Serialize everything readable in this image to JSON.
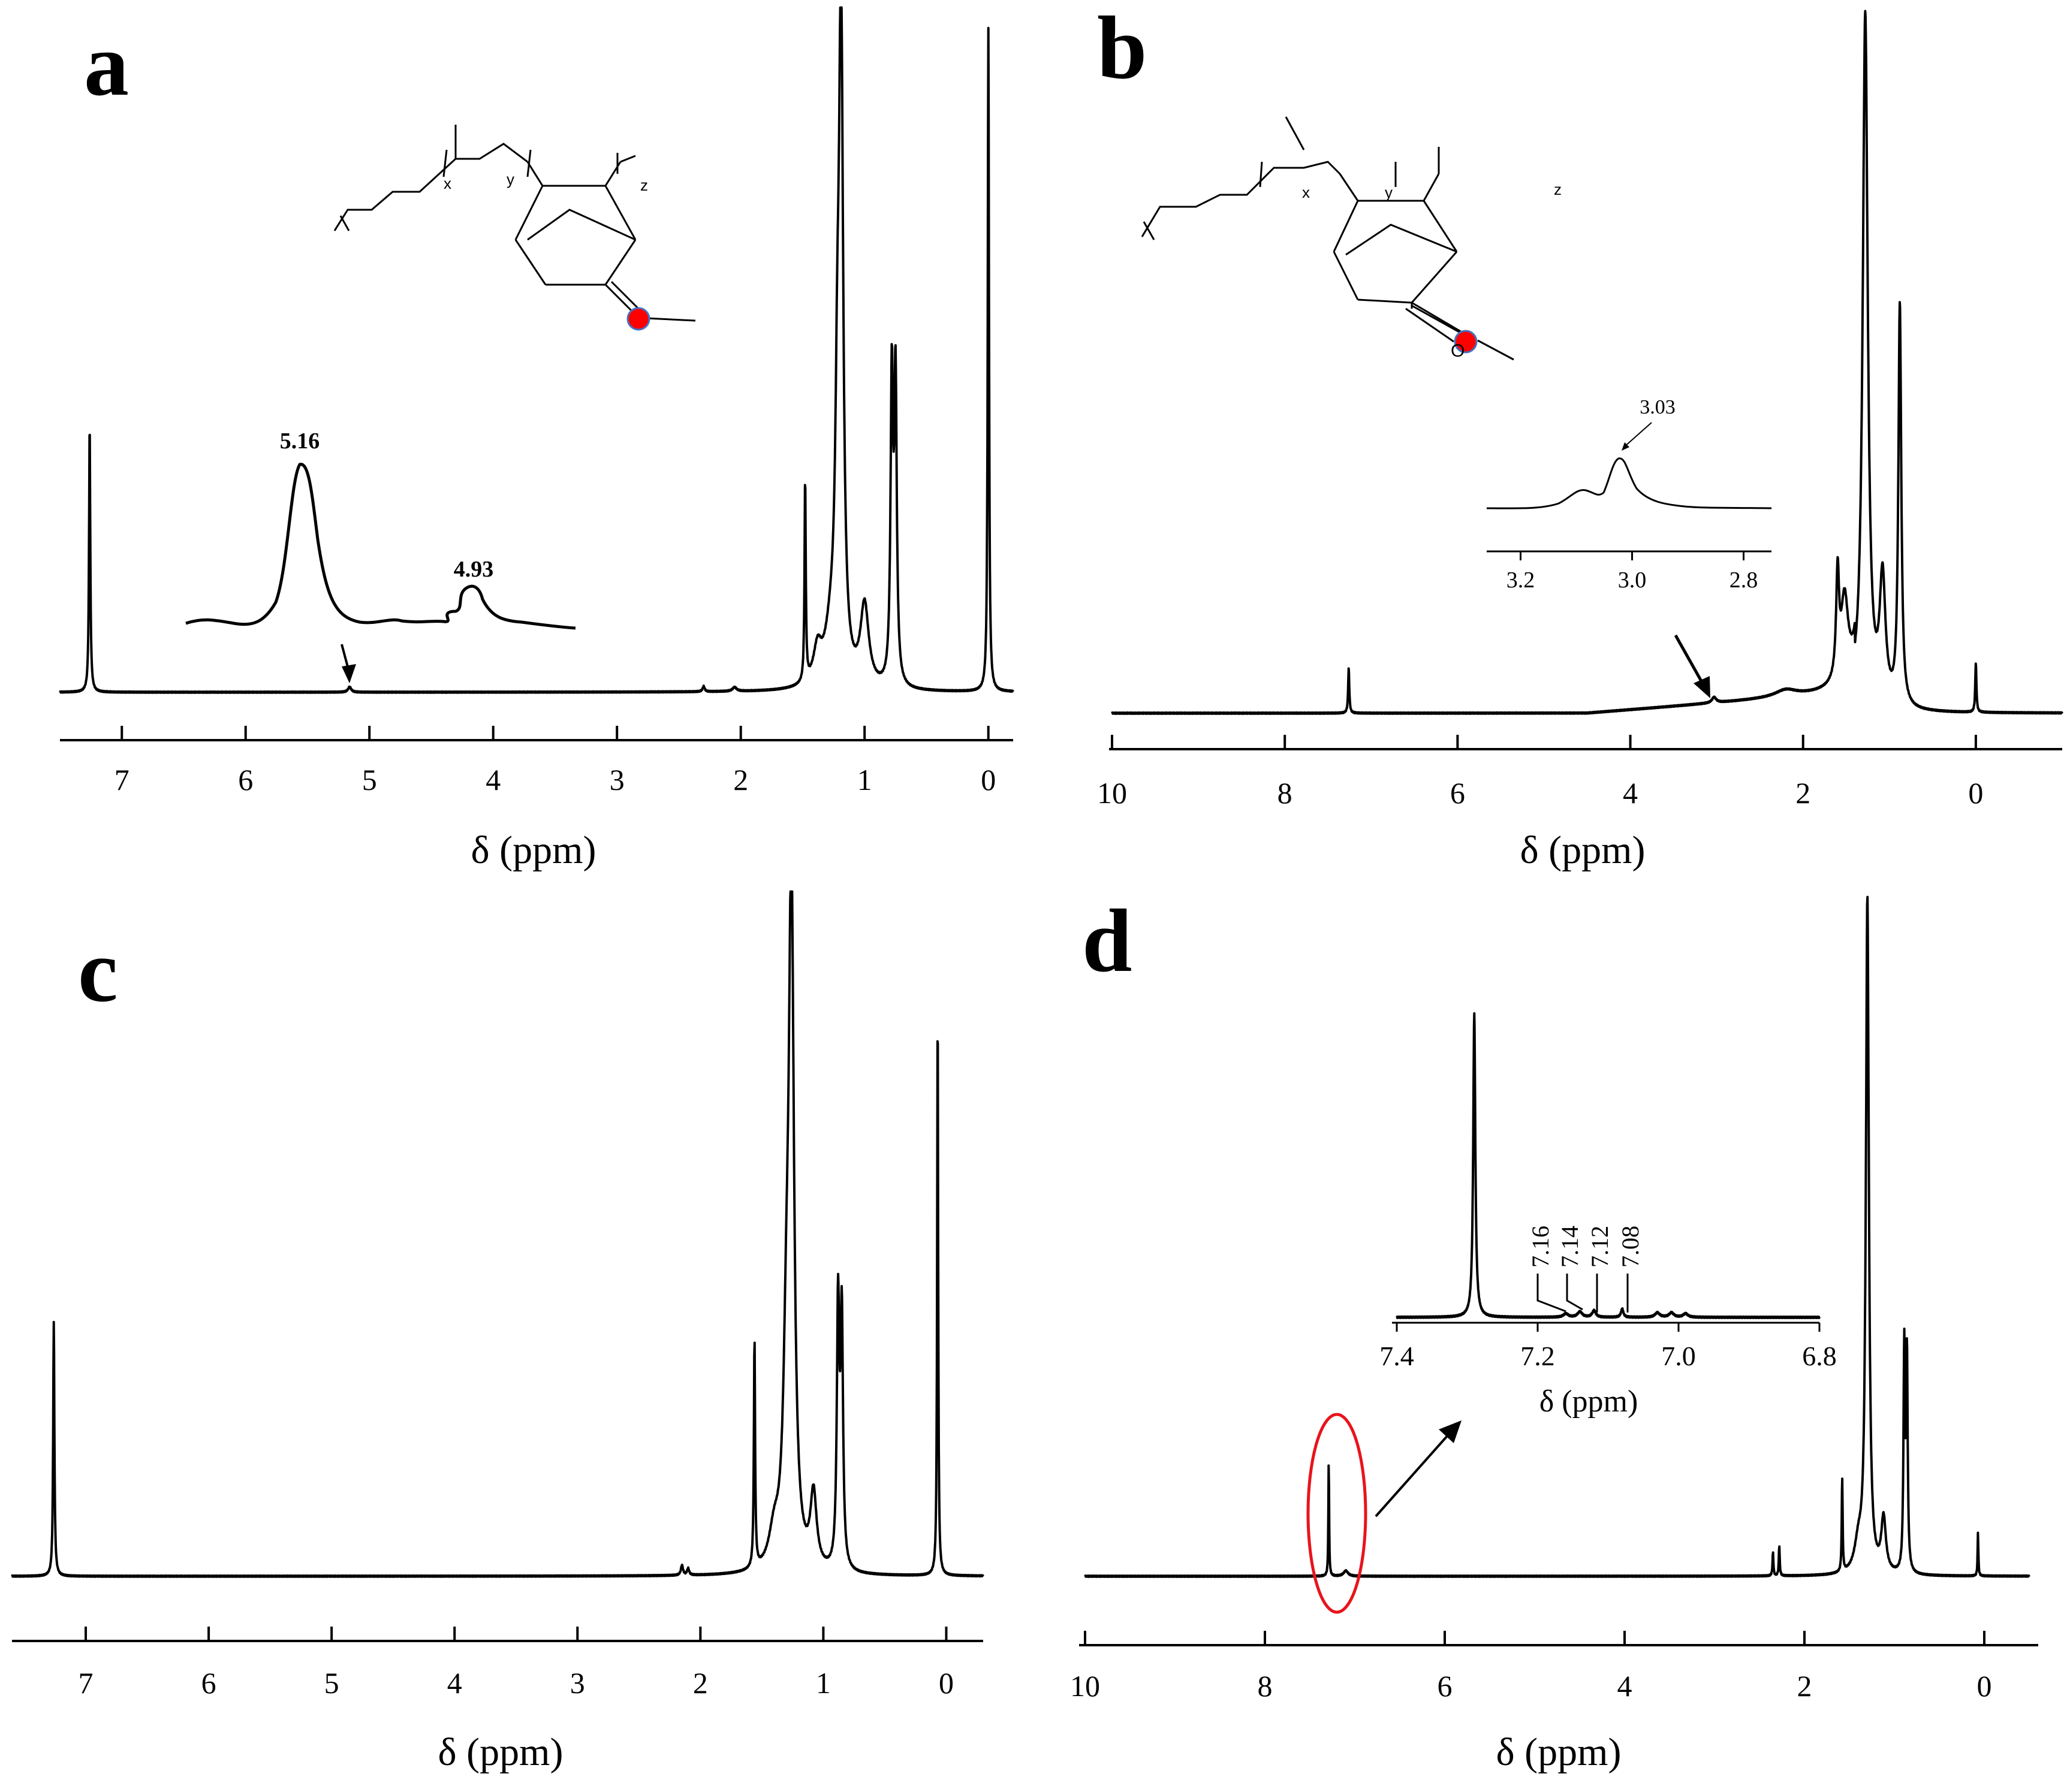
{
  "chart_data": [
    {
      "panel": "a",
      "type": "line",
      "xlabel": "δ (ppm)",
      "xlim": [
        7.5,
        -0.2
      ],
      "ticks": [
        7,
        6,
        5,
        4,
        3,
        2,
        1,
        0
      ],
      "peaks": [
        {
          "x": 7.26,
          "y": 0.4,
          "w": 0.006
        },
        {
          "x": 5.16,
          "y": 0.008,
          "w": 0.015
        },
        {
          "x": 2.3,
          "y": 0.008,
          "w": 0.01
        },
        {
          "x": 2.05,
          "y": 0.006,
          "w": 0.02
        },
        {
          "x": 1.48,
          "y": 0.3,
          "w": 0.006
        },
        {
          "x": 1.38,
          "y": 0.05,
          "w": 0.04
        },
        {
          "x": 1.27,
          "y": 0.07,
          "w": 0.06
        },
        {
          "x": 1.19,
          "y": 0.97,
          "w": 0.02
        },
        {
          "x": 1.22,
          "y": 0.3,
          "w": 0.02
        },
        {
          "x": 1.0,
          "y": 0.12,
          "w": 0.04
        },
        {
          "x": 0.78,
          "y": 0.45,
          "w": 0.012
        },
        {
          "x": 0.75,
          "y": 0.45,
          "w": 0.012
        },
        {
          "x": 0.0,
          "y": 0.99,
          "w": 0.006
        }
      ],
      "inset": {
        "peak_labels": [
          "5.16",
          "4.93"
        ]
      },
      "structure_labels": [
        "x",
        "y",
        "z"
      ]
    },
    {
      "panel": "b",
      "type": "line",
      "xlabel": "δ (ppm)",
      "xlim": [
        10,
        -1
      ],
      "ticks": [
        10,
        8,
        6,
        4,
        2,
        0
      ],
      "peaks": [
        {
          "x": 7.26,
          "y": 0.065,
          "w": 0.008
        },
        {
          "x": 3.03,
          "y": 0.008,
          "w": 0.03
        },
        {
          "x": 2.2,
          "y": 0.01,
          "w": 0.15
        },
        {
          "x": 1.6,
          "y": 0.15,
          "w": 0.02
        },
        {
          "x": 1.52,
          "y": 0.12,
          "w": 0.05
        },
        {
          "x": 1.28,
          "y": 1.0,
          "w": 0.035
        },
        {
          "x": 1.08,
          "y": 0.18,
          "w": 0.04
        },
        {
          "x": 0.88,
          "y": 0.58,
          "w": 0.02
        },
        {
          "x": 0.0,
          "y": 0.072,
          "w": 0.008
        }
      ],
      "baseline_rise": {
        "from": 4.5,
        "to": 1.4,
        "amp": 0.03
      },
      "inset": {
        "xlim": [
          3.25,
          2.75
        ],
        "ticks": [
          3.2,
          3.0,
          2.8
        ],
        "peak_label": "3.03"
      },
      "structure_labels": [
        "x",
        "y",
        "z",
        "O"
      ]
    },
    {
      "panel": "c",
      "type": "line",
      "xlabel": "δ (ppm)",
      "xlim": [
        7.6,
        -0.3
      ],
      "ticks": [
        7,
        6,
        5,
        4,
        3,
        2,
        1,
        0
      ],
      "peaks": [
        {
          "x": 7.26,
          "y": 0.38,
          "w": 0.006
        },
        {
          "x": 2.15,
          "y": 0.015,
          "w": 0.01
        },
        {
          "x": 2.1,
          "y": 0.01,
          "w": 0.01
        },
        {
          "x": 1.56,
          "y": 0.34,
          "w": 0.006
        },
        {
          "x": 1.4,
          "y": 0.05,
          "w": 0.05
        },
        {
          "x": 1.26,
          "y": 1.0,
          "w": 0.025
        },
        {
          "x": 1.3,
          "y": 0.25,
          "w": 0.03
        },
        {
          "x": 1.08,
          "y": 0.11,
          "w": 0.03
        },
        {
          "x": 0.88,
          "y": 0.39,
          "w": 0.012
        },
        {
          "x": 0.85,
          "y": 0.37,
          "w": 0.012
        },
        {
          "x": 0.07,
          "y": 0.85,
          "w": 0.005
        }
      ]
    },
    {
      "panel": "d",
      "type": "line",
      "xlabel": "δ (ppm)",
      "xlim": [
        10,
        -0.5
      ],
      "ticks": [
        10,
        8,
        6,
        4,
        2,
        0
      ],
      "peaks": [
        {
          "x": 7.29,
          "y": 0.17,
          "w": 0.005
        },
        {
          "x": 7.1,
          "y": 0.008,
          "w": 0.03
        },
        {
          "x": 2.35,
          "y": 0.035,
          "w": 0.006
        },
        {
          "x": 2.28,
          "y": 0.045,
          "w": 0.006
        },
        {
          "x": 1.58,
          "y": 0.14,
          "w": 0.006
        },
        {
          "x": 1.3,
          "y": 1.0,
          "w": 0.02
        },
        {
          "x": 1.4,
          "y": 0.04,
          "w": 0.05
        },
        {
          "x": 1.12,
          "y": 0.08,
          "w": 0.03
        },
        {
          "x": 0.89,
          "y": 0.33,
          "w": 0.01
        },
        {
          "x": 0.86,
          "y": 0.32,
          "w": 0.01
        },
        {
          "x": 0.07,
          "y": 0.065,
          "w": 0.005
        }
      ],
      "inset": {
        "xlim": [
          7.4,
          6.8
        ],
        "ticks": [
          7.4,
          7.2,
          7.0,
          6.8
        ],
        "xlabel": "δ (ppm)",
        "peak_labels": [
          "7.16",
          "7.14",
          "7.12",
          "7.08"
        ]
      }
    }
  ],
  "panel_letters": [
    "a",
    "b",
    "c",
    "d"
  ]
}
